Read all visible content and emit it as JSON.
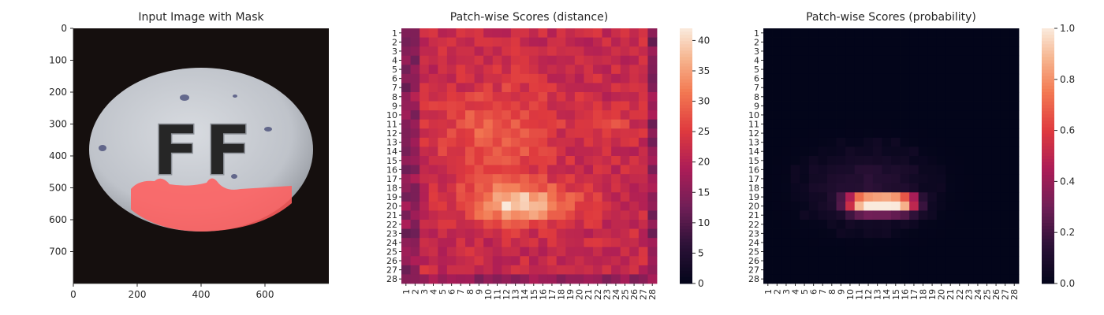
{
  "chart_data": [
    {
      "type": "image",
      "title": "Input Image with Mask",
      "xlim": [
        0,
        800
      ],
      "ylim": [
        0,
        800
      ],
      "xticks": [
        0,
        200,
        400,
        600
      ],
      "yticks": [
        0,
        100,
        200,
        300,
        400,
        500,
        600,
        700
      ],
      "background_color": "#150f0e",
      "object": "white oval tablet embossed with letters",
      "embossed_text": "FF",
      "mask_color": "#ff5f5f"
    },
    {
      "type": "heatmap",
      "title": "Patch-wise Scores (distance)",
      "rows": 28,
      "cols": 28,
      "tick_labels": [
        "1",
        "2",
        "3",
        "4",
        "5",
        "6",
        "7",
        "8",
        "9",
        "10",
        "11",
        "12",
        "13",
        "14",
        "15",
        "16",
        "17",
        "18",
        "19",
        "20",
        "21",
        "22",
        "23",
        "24",
        "25",
        "26",
        "27",
        "28"
      ],
      "colorbar": {
        "range": [
          0,
          42
        ],
        "ticks": [
          0,
          5,
          10,
          15,
          20,
          25,
          30,
          35,
          40
        ]
      },
      "colormap": "rocket",
      "description_peak": {
        "rows": [
          18,
          22
        ],
        "cols": [
          6,
          20
        ],
        "max": 42
      },
      "baseline": 22
    },
    {
      "type": "heatmap",
      "title": "Patch-wise Scores (probability)",
      "rows": 28,
      "cols": 28,
      "tick_labels": [
        "1",
        "2",
        "3",
        "4",
        "5",
        "6",
        "7",
        "8",
        "9",
        "10",
        "11",
        "12",
        "13",
        "14",
        "15",
        "16",
        "17",
        "18",
        "19",
        "20",
        "21",
        "22",
        "23",
        "24",
        "25",
        "26",
        "27",
        "28"
      ],
      "colorbar": {
        "range": [
          0,
          1
        ],
        "ticks": [
          0.0,
          0.2,
          0.4,
          0.6,
          0.8,
          1.0
        ],
        "tick_labels": [
          "0.0",
          "0.2",
          "0.4",
          "0.6",
          "0.8",
          "1.0"
        ]
      },
      "colormap": "rocket",
      "description_peak": {
        "rows": [
          18,
          22
        ],
        "cols": [
          9,
          18
        ],
        "max": 1.0
      },
      "baseline": 0
    }
  ]
}
